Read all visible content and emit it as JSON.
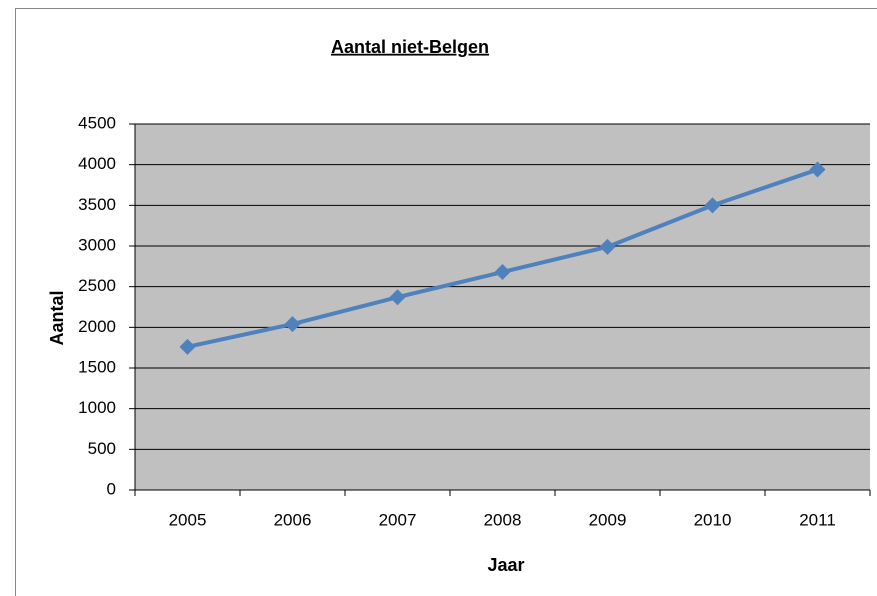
{
  "chart_data": {
    "type": "line",
    "title": "Aantal niet-Belgen",
    "x_label": "Jaar",
    "y_label": "Aantal",
    "categories": [
      "2005",
      "2006",
      "2007",
      "2008",
      "2009",
      "2010",
      "2011"
    ],
    "values": [
      1760,
      2040,
      2370,
      2680,
      2990,
      3500,
      3940
    ],
    "color": "#4f81bd",
    "ylim": [
      0,
      4500
    ],
    "yticks": [
      0,
      500,
      1000,
      1500,
      2000,
      2500,
      3000,
      3500,
      4000,
      4500
    ],
    "grid": true
  }
}
